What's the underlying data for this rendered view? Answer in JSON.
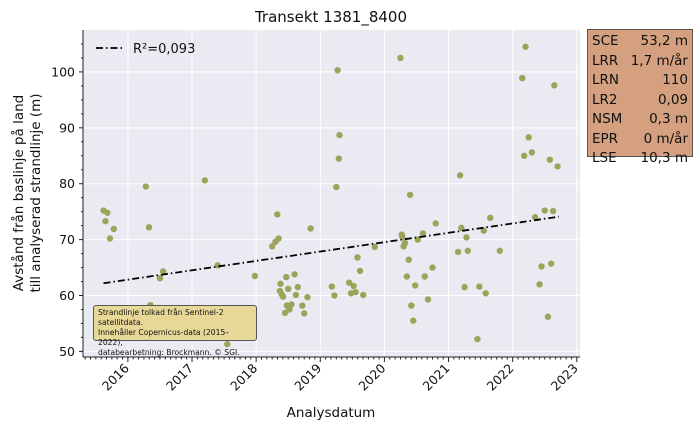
{
  "chart_data": {
    "type": "scatter",
    "title": "Transekt 1381_8400",
    "xlabel": "Analysdatum",
    "ylabel_line1": "Avstånd från baslinje på land",
    "ylabel_line2": "till analyserad strandlinje (m)",
    "xlim": [
      2015.3,
      2023.05
    ],
    "ylim": [
      49,
      107.5
    ],
    "x_ticks": [
      2016,
      2017,
      2018,
      2019,
      2020,
      2021,
      2022,
      2023
    ],
    "x_tick_labels": [
      "2016",
      "2017",
      "2018",
      "2019",
      "2020",
      "2021",
      "2022",
      "2023"
    ],
    "y_ticks": [
      50,
      60,
      70,
      80,
      90,
      100
    ],
    "y_tick_labels": [
      "50",
      "60",
      "70",
      "80",
      "90",
      "100"
    ],
    "grid": true,
    "legend_position": "top-left",
    "series": [
      {
        "kind": "points",
        "color": "#9ea35a",
        "x": [
          2015.62,
          2015.65,
          2015.68,
          2015.72,
          2015.78,
          2016.28,
          2016.33,
          2016.35,
          2016.42,
          2016.5,
          2016.55,
          2017.2,
          2017.4,
          2017.55,
          2017.98,
          2018.25,
          2018.3,
          2018.33,
          2018.35,
          2018.37,
          2018.38,
          2018.4,
          2018.42,
          2018.45,
          2018.47,
          2018.48,
          2018.5,
          2018.52,
          2018.55,
          2018.6,
          2018.62,
          2018.65,
          2018.72,
          2018.75,
          2018.8,
          2018.85,
          2019.18,
          2019.22,
          2019.25,
          2019.27,
          2019.29,
          2019.3,
          2019.45,
          2019.48,
          2019.52,
          2019.55,
          2019.58,
          2019.62,
          2019.67,
          2019.85,
          2020.25,
          2020.27,
          2020.28,
          2020.3,
          2020.32,
          2020.35,
          2020.38,
          2020.4,
          2020.42,
          2020.45,
          2020.48,
          2020.52,
          2020.6,
          2020.63,
          2020.68,
          2020.75,
          2020.8,
          2021.15,
          2021.18,
          2021.2,
          2021.25,
          2021.28,
          2021.3,
          2021.45,
          2021.48,
          2021.55,
          2021.58,
          2021.65,
          2021.8,
          2022.15,
          2022.18,
          2022.2,
          2022.25,
          2022.3,
          2022.35,
          2022.42,
          2022.45,
          2022.5,
          2022.55,
          2022.58,
          2022.6,
          2022.63,
          2022.65,
          2022.7
        ],
        "y": [
          75.2,
          73.3,
          74.8,
          70.2,
          71.9,
          79.5,
          72.2,
          58.3,
          55.2,
          63.1,
          64.3,
          80.6,
          65.4,
          51.3,
          63.5,
          68.8,
          69.6,
          74.5,
          70.2,
          60.8,
          62.1,
          60.2,
          59.8,
          56.9,
          63.3,
          58.2,
          61.2,
          57.5,
          58.4,
          63.8,
          60.1,
          61.5,
          58.2,
          56.8,
          59.7,
          72.0,
          61.6,
          60.0,
          79.4,
          100.3,
          84.5,
          88.7,
          62.3,
          60.4,
          61.7,
          60.6,
          66.8,
          64.4,
          60.1,
          68.7,
          102.5,
          70.9,
          70.5,
          68.8,
          69.4,
          63.4,
          66.4,
          78.0,
          58.2,
          55.5,
          61.8,
          70.0,
          71.1,
          63.4,
          59.3,
          65.0,
          72.9,
          67.8,
          81.5,
          72.1,
          61.5,
          70.4,
          68.0,
          52.2,
          61.6,
          71.6,
          60.4,
          73.9,
          68.0,
          98.9,
          85.0,
          104.5,
          88.3,
          85.6,
          74.0,
          62.0,
          65.2,
          75.2,
          56.2,
          84.3,
          65.7,
          75.1,
          97.6,
          83.1
        ]
      },
      {
        "kind": "trend",
        "name": "R²=0,093",
        "color": "#000000",
        "style": "dashdot",
        "x": [
          2015.62,
          2022.72
        ],
        "y": [
          62.2,
          74.1
        ]
      }
    ]
  },
  "stats": [
    {
      "label": "SCE",
      "value": "53,2 m"
    },
    {
      "label": "LRR",
      "value": "1,7 m/år"
    },
    {
      "label": "LRN",
      "value": "110"
    },
    {
      "label": "LR2",
      "value": "0,09"
    },
    {
      "label": "NSM",
      "value": "0,3 m"
    },
    {
      "label": "EPR",
      "value": "0 m/år"
    },
    {
      "label": "LSE",
      "value": "10,3 m"
    }
  ],
  "attribution": {
    "line1": "Strandlinje tolkad från Sentinel-2 satellitdata.",
    "line2": "Innehåller Copernicus-data (2015–2022),",
    "line3": "databearbetning: Brockmann. © SGI."
  }
}
